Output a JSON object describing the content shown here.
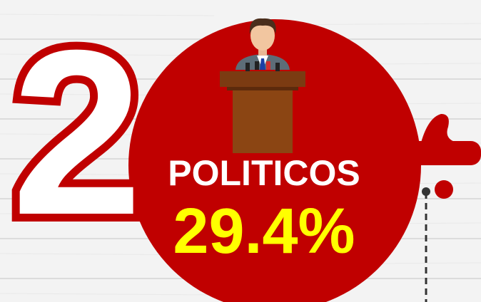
{
  "rank": "2",
  "label": "POLITICOS",
  "value": "29.4%"
}
